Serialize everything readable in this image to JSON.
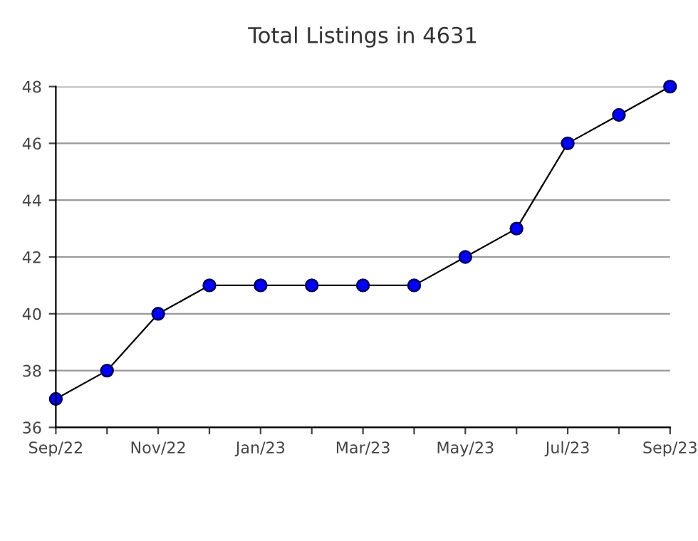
{
  "chart_data": {
    "type": "line",
    "title": "Total Listings in 4631",
    "categories": [
      "Sep/22",
      null,
      "Nov/22",
      null,
      "Jan/23",
      null,
      "Mar/23",
      null,
      "May/23",
      null,
      "Jul/23",
      null,
      "Sep/23"
    ],
    "series": [
      {
        "color": "#0000ff",
        "values": [
          37,
          38,
          40,
          41,
          41,
          41,
          41,
          41,
          42,
          43,
          46,
          47,
          48
        ]
      }
    ],
    "ylim": [
      36,
      48
    ],
    "yticks": [
      36,
      38,
      40,
      42,
      44,
      46,
      48
    ],
    "grid": "y",
    "marker": "circle",
    "line_style": "solid",
    "legend": false
  }
}
